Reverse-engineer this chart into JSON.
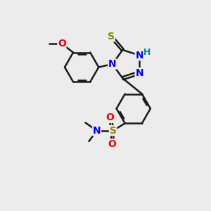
{
  "bg_color": "#ececec",
  "bond_color": "#1a1a1a",
  "bond_width": 1.8,
  "dbo": 0.07,
  "atom_colors": {
    "N": "#0000ee",
    "S_thione": "#8b8b00",
    "S_sulfo": "#8b8b00",
    "O": "#ee0000",
    "H": "#008b8b",
    "C": "#1a1a1a"
  },
  "fs": 10,
  "xlim": [
    0,
    10
  ],
  "ylim": [
    0,
    10
  ]
}
